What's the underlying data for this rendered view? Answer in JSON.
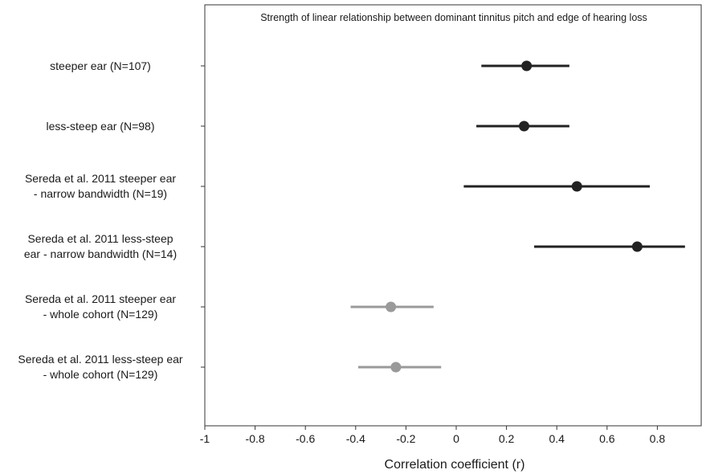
{
  "chart_data": {
    "type": "scatter",
    "title": "Strength of linear relationship between dominant tinnitus pitch and edge of hearing loss",
    "xlabel": "Correlation coefficient (r)",
    "ylabel": "",
    "xlim": [
      -1,
      0.98
    ],
    "xticks": [
      "-1",
      "-0.8",
      "-0.6",
      "-0.4",
      "-0.2",
      "0",
      "0.2",
      "0.4",
      "0.6",
      "0.8"
    ],
    "grid": false,
    "categories": [
      "steeper ear (N=107)",
      "less-steep ear (N=98)",
      "Sereda et al. 2011 steeper ear\n- narrow bandwidth (N=19)",
      "Sereda et al. 2011 less-steep\near - narrow bandwidth (N=14)",
      "Sereda et al. 2011 steeper ear\n- whole cohort (N=129)",
      "Sereda et al. 2011 less-steep ear\n- whole cohort (N=129)"
    ],
    "points": [
      {
        "r": 0.28,
        "ci_low": 0.1,
        "ci_high": 0.45,
        "color": "#222222"
      },
      {
        "r": 0.27,
        "ci_low": 0.08,
        "ci_high": 0.45,
        "color": "#222222"
      },
      {
        "r": 0.48,
        "ci_low": 0.03,
        "ci_high": 0.77,
        "color": "#222222"
      },
      {
        "r": 0.72,
        "ci_low": 0.31,
        "ci_high": 0.91,
        "color": "#222222"
      },
      {
        "r": -0.26,
        "ci_low": -0.42,
        "ci_high": -0.09,
        "color": "#9a9a9a"
      },
      {
        "r": -0.24,
        "ci_low": -0.39,
        "ci_high": -0.06,
        "color": "#9a9a9a"
      }
    ]
  }
}
